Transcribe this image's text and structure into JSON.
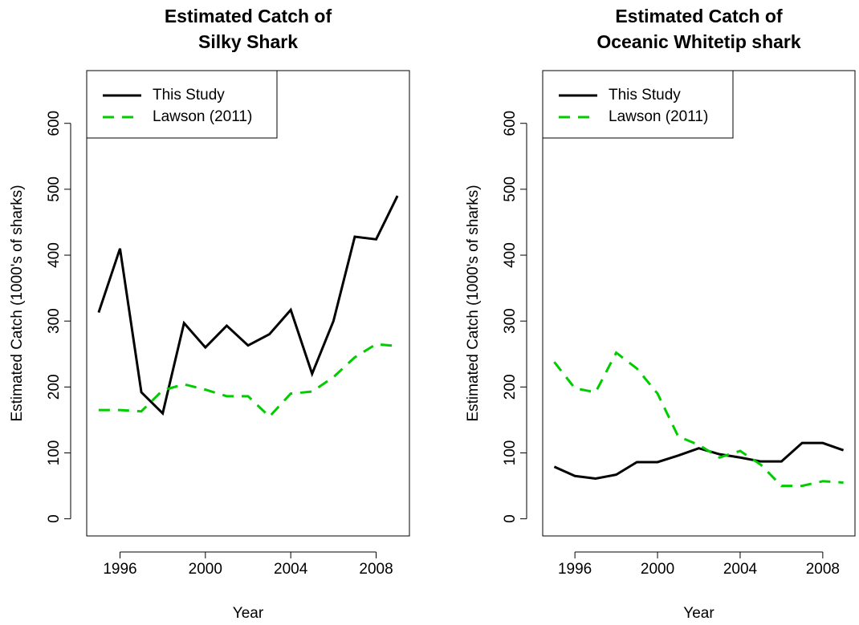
{
  "chart_data": [
    {
      "type": "line",
      "title": [
        "Estimated Catch of",
        "Silky Shark"
      ],
      "xlabel": "Year",
      "ylabel": "Estimated Catch (1000's of sharks)",
      "x": [
        1995,
        1996,
        1997,
        1998,
        1999,
        2000,
        2001,
        2002,
        2003,
        2004,
        2005,
        2006,
        2007,
        2008,
        2009
      ],
      "series": [
        {
          "name": "This Study",
          "color": "#000000",
          "dash": false,
          "values": [
            313,
            410,
            192,
            160,
            297,
            260,
            293,
            263,
            280,
            317,
            220,
            300,
            428,
            424,
            490
          ]
        },
        {
          "name": "Lawson (2011)",
          "color": "#00cc00",
          "dash": true,
          "values": [
            165,
            165,
            163,
            195,
            204,
            196,
            186,
            186,
            155,
            190,
            193,
            215,
            245,
            265,
            262
          ]
        }
      ],
      "xlim": [
        1994.44,
        2009.56
      ],
      "ylim": [
        -26,
        680
      ],
      "xticks": [
        1996,
        2000,
        2004,
        2008
      ],
      "yticks": [
        0,
        100,
        200,
        300,
        400,
        500,
        600
      ],
      "legend": "topleft"
    },
    {
      "type": "line",
      "title": [
        "Estimated Catch of",
        "Oceanic Whitetip shark"
      ],
      "xlabel": "Year",
      "ylabel": "Estimated Catch (1000's of sharks)",
      "x": [
        1995,
        1996,
        1997,
        1998,
        1999,
        2000,
        2001,
        2002,
        2003,
        2004,
        2005,
        2006,
        2007,
        2008,
        2009
      ],
      "series": [
        {
          "name": "This Study",
          "color": "#000000",
          "dash": false,
          "values": [
            79,
            65,
            61,
            67,
            86,
            86,
            96,
            107,
            98,
            93,
            87,
            87,
            115,
            115,
            104
          ]
        },
        {
          "name": "Lawson (2011)",
          "color": "#00cc00",
          "dash": true,
          "values": [
            238,
            198,
            192,
            252,
            228,
            190,
            125,
            112,
            93,
            103,
            82,
            50,
            50,
            57,
            55
          ]
        }
      ],
      "xlim": [
        1994.44,
        2009.56
      ],
      "ylim": [
        -26,
        680
      ],
      "xticks": [
        1996,
        2000,
        2004,
        2008
      ],
      "yticks": [
        0,
        100,
        200,
        300,
        400,
        500,
        600
      ],
      "legend": "topleft"
    }
  ]
}
